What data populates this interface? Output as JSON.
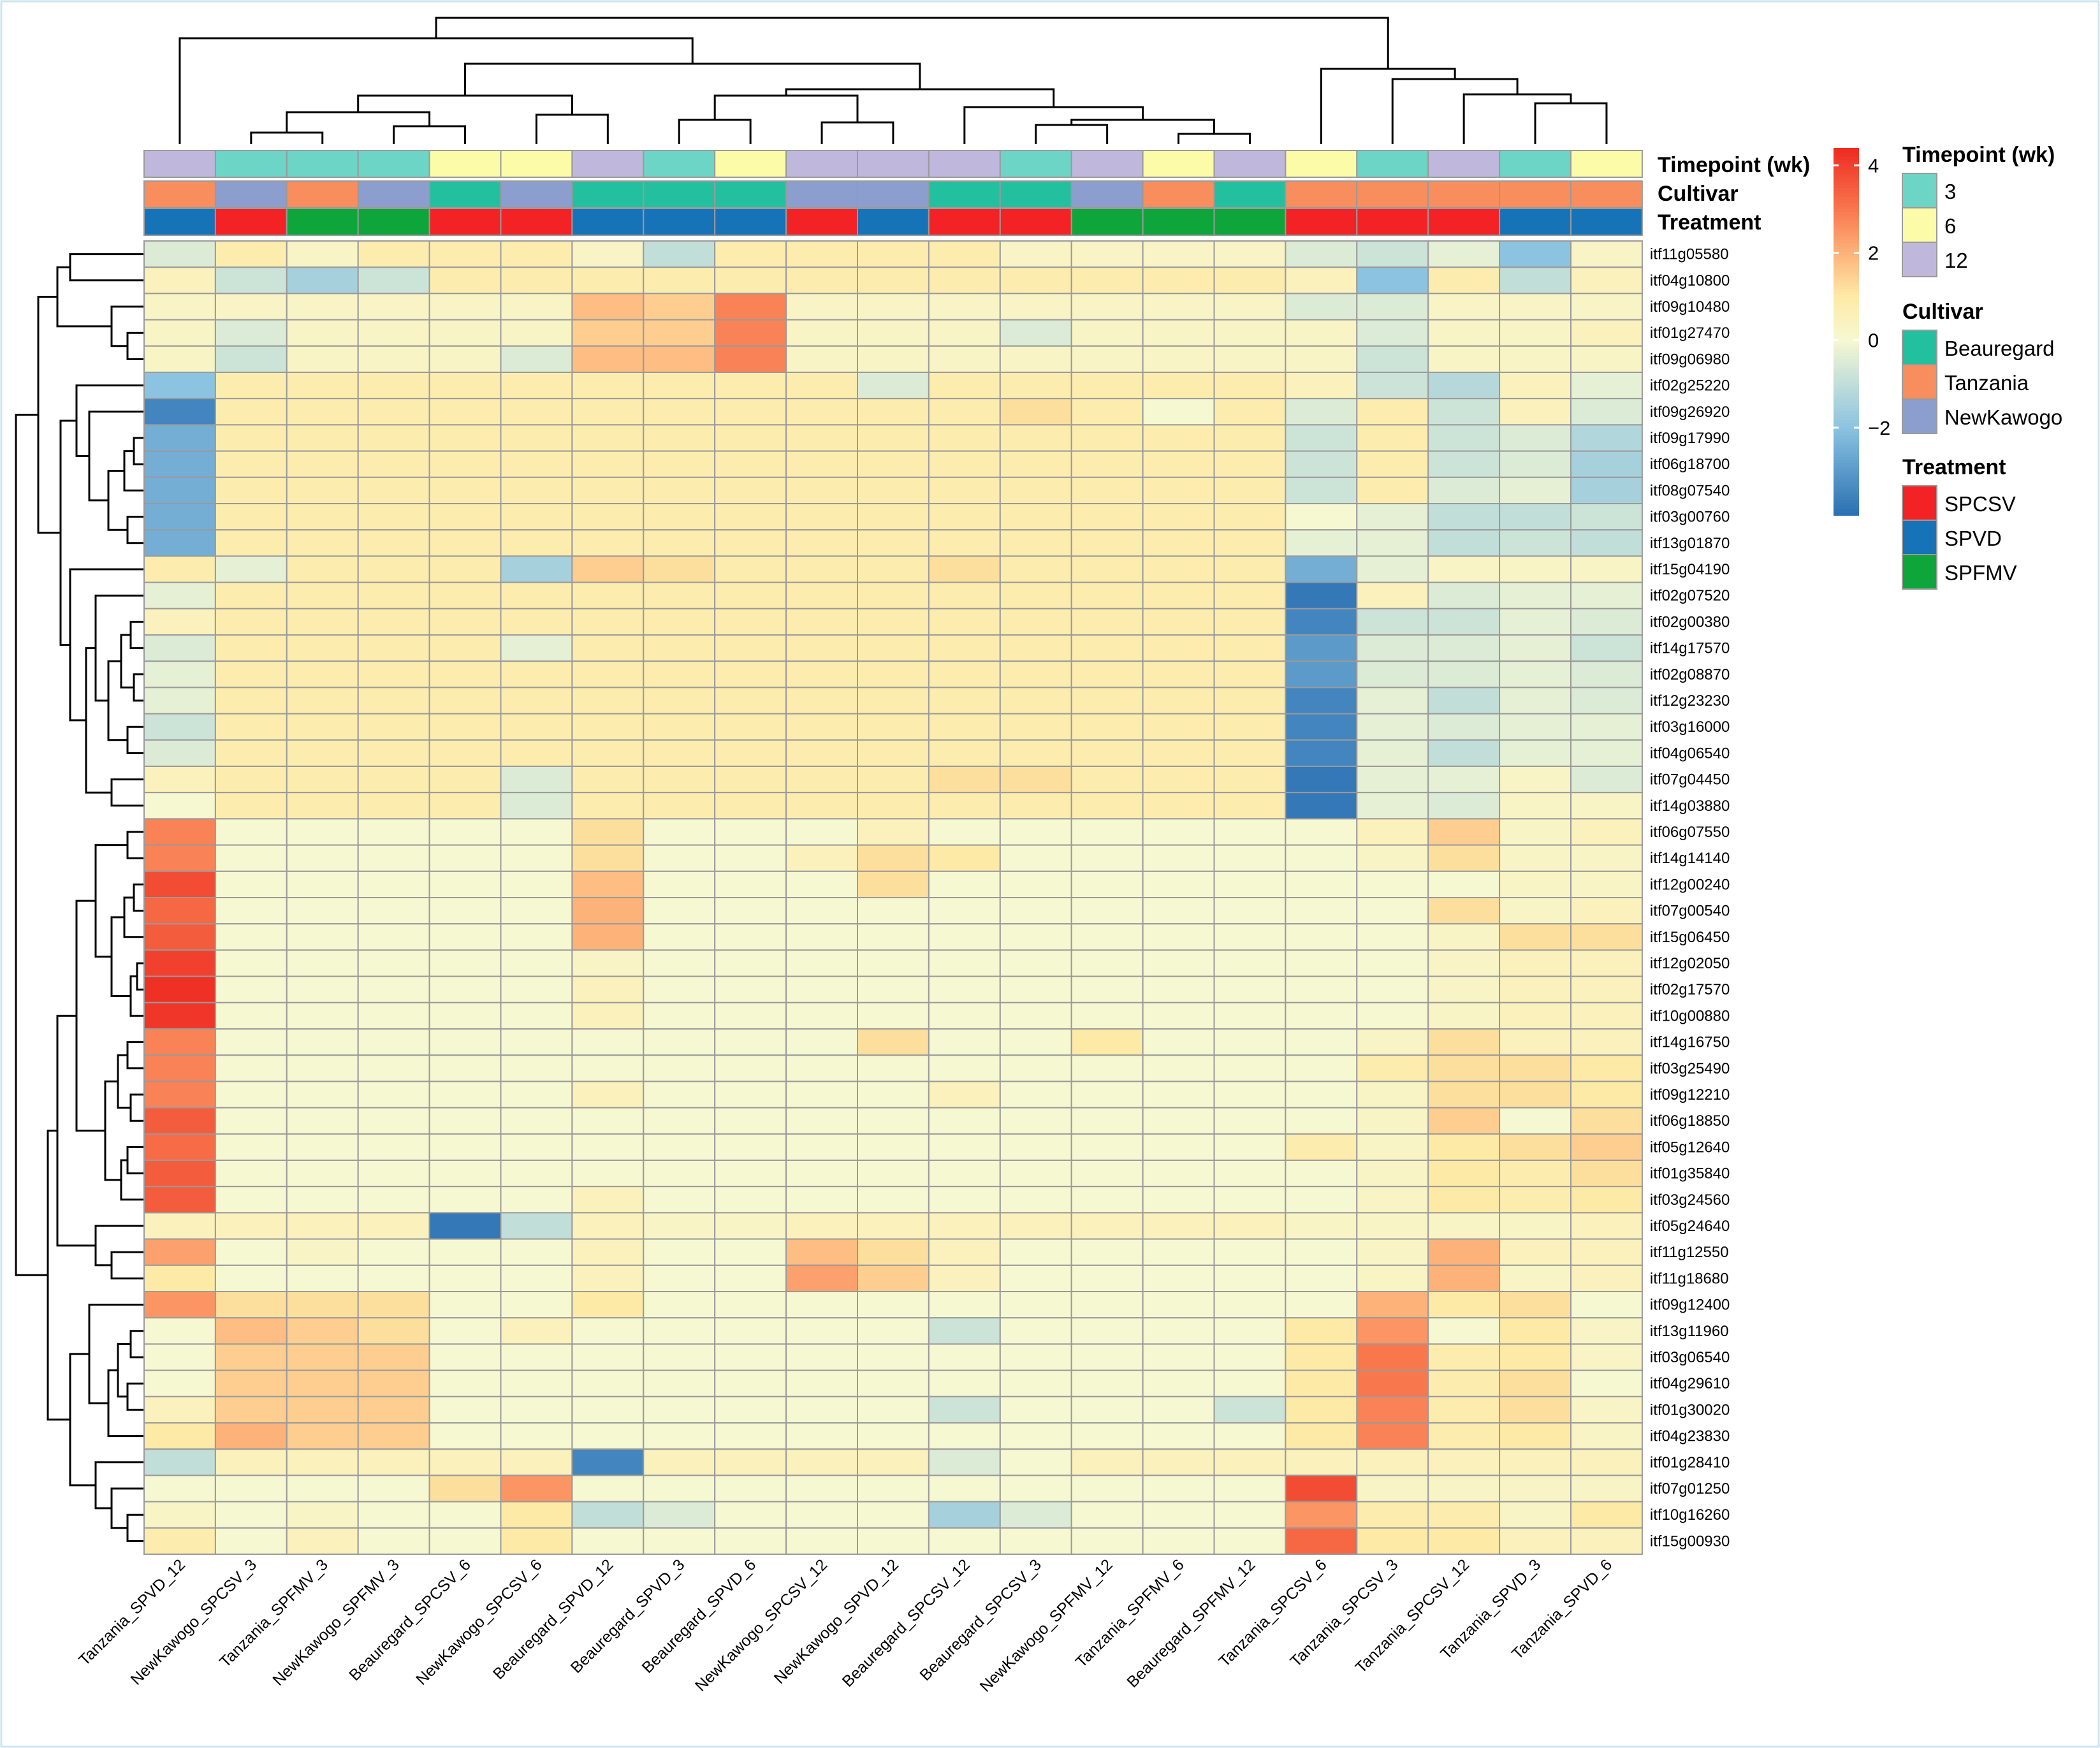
{
  "chart_data": {
    "type": "heatmap",
    "columns": [
      "Tanzania_SPVD_12",
      "NewKawogo_SPCSV_3",
      "Tanzania_SPFMV_3",
      "NewKawogo_SPFMV_3",
      "Beauregard_SPCSV_6",
      "NewKawogo_SPCSV_6",
      "Beauregard_SPVD_12",
      "Beauregard_SPVD_3",
      "Beauregard_SPVD_6",
      "NewKawogo_SPCSV_12",
      "NewKawogo_SPVD_12",
      "Beauregard_SPCSV_12",
      "Beauregard_SPCSV_3",
      "NewKawogo_SPFMV_12",
      "Tanzania_SPFMV_6",
      "Beauregard_SPFMV_12",
      "Tanzania_SPCSV_6",
      "Tanzania_SPCSV_3",
      "Tanzania_SPCSV_12",
      "Tanzania_SPVD_3",
      "Tanzania_SPVD_6"
    ],
    "rows": [
      "itf11g05580",
      "itf04g10800",
      "itf09g10480",
      "itf01g27470",
      "itf09g06980",
      "itf02g25220",
      "itf09g26920",
      "itf09g17990",
      "itf06g18700",
      "itf08g07540",
      "itf03g00760",
      "itf13g01870",
      "itf15g04190",
      "itf02g07520",
      "itf02g00380",
      "itf14g17570",
      "itf02g08870",
      "itf12g23230",
      "itf03g16000",
      "itf04g06540",
      "itf07g04450",
      "itf14g03880",
      "itf06g07550",
      "itf14g14140",
      "itf12g00240",
      "itf07g00540",
      "itf15g06450",
      "itf12g02050",
      "itf02g17570",
      "itf10g00880",
      "itf14g16750",
      "itf03g25490",
      "itf09g12210",
      "itf06g18850",
      "itf05g12640",
      "itf01g35840",
      "itf03g24560",
      "itf05g24640",
      "itf11g12550",
      "itf11g18680",
      "itf09g12400",
      "itf13g11960",
      "itf03g06540",
      "itf04g29610",
      "itf01g30020",
      "itf04g23830",
      "itf01g28410",
      "itf07g01250",
      "itf10g16260",
      "itf15g00930"
    ],
    "values": [
      [
        -0.5,
        0.8,
        0.3,
        0.8,
        0.8,
        0.8,
        0.3,
        -1,
        0.8,
        0.8,
        0.8,
        0.8,
        0.3,
        0.3,
        0.3,
        0.3,
        -0.5,
        -0.8,
        -0.3,
        -2,
        0.3
      ],
      [
        0.5,
        -0.8,
        -1.5,
        -0.8,
        0.8,
        0.8,
        0.8,
        0.8,
        0.8,
        0.8,
        0.8,
        0.8,
        0.8,
        0.8,
        0.8,
        0.8,
        0.5,
        -2,
        0.8,
        -1,
        0.5
      ],
      [
        0.3,
        0.3,
        0.3,
        0.3,
        0.3,
        0.3,
        1.8,
        1.5,
        2.8,
        0.3,
        0.3,
        0.3,
        0.3,
        0.3,
        0.3,
        0.3,
        -0.5,
        -0.5,
        0.3,
        0.3,
        0.3
      ],
      [
        0.3,
        -0.5,
        0.3,
        0.3,
        0.3,
        0.3,
        1.5,
        1.5,
        2.8,
        0.3,
        0.3,
        0.3,
        -0.5,
        0.3,
        0.3,
        0.3,
        0.3,
        -0.5,
        0.3,
        0.3,
        0.5
      ],
      [
        0.3,
        -0.8,
        0.3,
        0.3,
        0.3,
        -0.5,
        1.8,
        1.8,
        2.8,
        0.3,
        0.3,
        0.3,
        0.3,
        0.3,
        0.3,
        0.3,
        0.3,
        -0.8,
        0.3,
        0.3,
        0.3
      ],
      [
        -2,
        0.8,
        0.8,
        0.8,
        0.8,
        0.8,
        0.8,
        0.8,
        0.8,
        0.8,
        -0.5,
        0.8,
        0.8,
        0.8,
        0.8,
        0.8,
        0.5,
        -0.8,
        -1.2,
        0.5,
        -0.3
      ],
      [
        -3.5,
        0.8,
        0.8,
        0.8,
        0.8,
        0.8,
        0.8,
        0.8,
        0.8,
        0.8,
        0.8,
        0.8,
        1.2,
        0.8,
        0,
        0.8,
        -0.5,
        0.8,
        -0.8,
        0.5,
        -0.5
      ],
      [
        -2.5,
        0.8,
        0.8,
        0.8,
        0.8,
        0.8,
        0.8,
        0.8,
        0.8,
        0.8,
        0.8,
        0.8,
        0.8,
        0.8,
        0.8,
        0.8,
        -0.8,
        0.8,
        -0.8,
        -0.5,
        -1.3
      ],
      [
        -2.5,
        0.8,
        0.8,
        0.8,
        0.8,
        0.8,
        0.8,
        0.8,
        0.8,
        0.8,
        0.8,
        0.8,
        0.8,
        0.8,
        0.8,
        0.8,
        -0.8,
        0.8,
        -0.8,
        -0.5,
        -1.5
      ],
      [
        -2.5,
        0.8,
        0.8,
        0.8,
        0.8,
        0.8,
        0.8,
        0.8,
        0.8,
        0.8,
        0.8,
        0.8,
        0.8,
        0.8,
        0.8,
        0.8,
        -0.8,
        0.8,
        -0.5,
        -0.3,
        -1.5
      ],
      [
        -2.5,
        0.8,
        0.8,
        0.8,
        0.8,
        0.8,
        0.8,
        0.8,
        0.8,
        0.8,
        0.8,
        0.8,
        0.8,
        0.8,
        0.8,
        0.8,
        0,
        -0.3,
        -1,
        -1,
        -0.8
      ],
      [
        -2.5,
        0.8,
        0.8,
        0.8,
        0.8,
        0.8,
        0.8,
        0.8,
        0.8,
        0.8,
        0.8,
        0.8,
        0.8,
        0.8,
        0.8,
        0.8,
        -0.3,
        -0.3,
        -1,
        -0.8,
        -1
      ],
      [
        0.8,
        -0.3,
        0.8,
        0.8,
        0.8,
        -1.5,
        1.5,
        1.2,
        0.8,
        0.8,
        0.8,
        1.2,
        0.8,
        0.8,
        0.8,
        0.8,
        -2.5,
        -0.3,
        0.3,
        0.3,
        0.3
      ],
      [
        -0.3,
        0.8,
        0.8,
        0.8,
        0.8,
        0.8,
        0.8,
        0.8,
        0.8,
        0.8,
        0.8,
        0.8,
        0.8,
        0.8,
        0.8,
        0.8,
        -3.8,
        0.5,
        -0.5,
        -0.3,
        -0.3
      ],
      [
        0.5,
        0.8,
        0.8,
        0.8,
        0.8,
        0.8,
        0.8,
        0.8,
        0.8,
        0.8,
        0.8,
        0.8,
        0.8,
        0.8,
        0.8,
        0.8,
        -3.5,
        -0.8,
        -0.8,
        -0.3,
        -0.5
      ],
      [
        -0.5,
        0.8,
        0.8,
        0.8,
        0.8,
        -0.3,
        0.8,
        0.8,
        0.8,
        0.8,
        0.8,
        0.8,
        0.8,
        0.8,
        0.8,
        0.8,
        -3,
        -0.5,
        -0.5,
        -0.3,
        -0.8
      ],
      [
        -0.3,
        0.8,
        0.8,
        0.8,
        0.8,
        0.8,
        0.8,
        0.8,
        0.8,
        0.8,
        0.8,
        0.8,
        0.8,
        0.8,
        0.8,
        0.8,
        -3,
        -0.5,
        -0.5,
        -0.3,
        -0.5
      ],
      [
        -0.3,
        0.8,
        0.8,
        0.8,
        0.8,
        0.8,
        0.8,
        0.8,
        0.8,
        0.8,
        0.8,
        0.8,
        0.8,
        0.8,
        0.8,
        0.8,
        -3.5,
        -0.3,
        -1,
        -0.3,
        -0.5
      ],
      [
        -0.8,
        0.8,
        0.8,
        0.8,
        0.8,
        0.8,
        0.8,
        0.8,
        0.8,
        0.8,
        0.8,
        0.8,
        0.8,
        0.8,
        0.8,
        0.8,
        -3.5,
        -0.3,
        -0.5,
        -0.3,
        -0.3
      ],
      [
        -0.5,
        0.8,
        0.8,
        0.8,
        0.8,
        0.8,
        0.8,
        0.8,
        0.8,
        0.8,
        0.8,
        0.8,
        0.8,
        0.8,
        0.8,
        0.8,
        -3.5,
        -0.3,
        -1,
        -0.3,
        -0.3
      ],
      [
        0.5,
        0.8,
        0.8,
        0.8,
        0.8,
        -0.5,
        0.8,
        0.8,
        0.8,
        0.8,
        0.8,
        1.2,
        1.2,
        0.8,
        0.8,
        0.8,
        -3.8,
        -0.3,
        -0.3,
        0.3,
        -0.5
      ],
      [
        0,
        0.8,
        0.8,
        0.8,
        0.8,
        -0.5,
        0.8,
        0.8,
        0.8,
        0.8,
        0.8,
        0.8,
        0.8,
        0.8,
        0.8,
        0.8,
        -3.8,
        -0.3,
        -0.5,
        0.3,
        0.3
      ],
      [
        2.8,
        0,
        0,
        0,
        0,
        0,
        1.2,
        0,
        0,
        0,
        0.5,
        0,
        0,
        0,
        0,
        0,
        0,
        0.5,
        1.5,
        0.3,
        0.5
      ],
      [
        2.8,
        0,
        0,
        0,
        0,
        0,
        1.2,
        0,
        0,
        0.5,
        1.2,
        1,
        0,
        0,
        0,
        0,
        0,
        0.3,
        1.2,
        0.3,
        0.3
      ],
      [
        3.8,
        0,
        0,
        0,
        0,
        0,
        1.8,
        0,
        0,
        0,
        1.2,
        0,
        0,
        0,
        0,
        0,
        0,
        0,
        0,
        0.3,
        0.3
      ],
      [
        3.3,
        0,
        0,
        0,
        0,
        0,
        2,
        0,
        0,
        0,
        0,
        0,
        0,
        0,
        0,
        0,
        0,
        0,
        1.2,
        0.3,
        0.5
      ],
      [
        3.5,
        0,
        0,
        0,
        0,
        0,
        2,
        0,
        0,
        0,
        0,
        0,
        0,
        0,
        0,
        0,
        0,
        0,
        0.3,
        1.2,
        1.2
      ],
      [
        4,
        0,
        0,
        0,
        0,
        0,
        0.3,
        0,
        0,
        0,
        0,
        0,
        0,
        0,
        0,
        0,
        0,
        0,
        0.3,
        0.5,
        0.5
      ],
      [
        4.3,
        0,
        0,
        0,
        0,
        0,
        0.5,
        0,
        0,
        0,
        0,
        0,
        0,
        0,
        0,
        0,
        0,
        0,
        0.3,
        0.5,
        0.5
      ],
      [
        4.2,
        0,
        0,
        0,
        0,
        0,
        0.5,
        0,
        0,
        0,
        0,
        0,
        0,
        0,
        0,
        0,
        0,
        0,
        0.3,
        0.5,
        0.5
      ],
      [
        2.8,
        0,
        0,
        0,
        0,
        0,
        0,
        0,
        0,
        0,
        1.2,
        0,
        0,
        1,
        0,
        0,
        0,
        0.3,
        1.2,
        0.5,
        0.5
      ],
      [
        2.8,
        0,
        0,
        0,
        0,
        0,
        0,
        0,
        0,
        0,
        0,
        0,
        0,
        0,
        0,
        0,
        0,
        0.8,
        1.2,
        1.2,
        1
      ],
      [
        2.8,
        0,
        0,
        0,
        0,
        0,
        0.5,
        0,
        0,
        0,
        0,
        0.5,
        0,
        0,
        0,
        0,
        0,
        0.3,
        1.2,
        1.2,
        1
      ],
      [
        3.5,
        0,
        0,
        0,
        0,
        0,
        0,
        0,
        0,
        0,
        0,
        0,
        0,
        0,
        0,
        0,
        0,
        0.3,
        1.5,
        0,
        1.2
      ],
      [
        3.2,
        0,
        0,
        0,
        0,
        0,
        0,
        0,
        0,
        0,
        0,
        0,
        0,
        0,
        0,
        0,
        0.8,
        0.3,
        1,
        1.2,
        1.5
      ],
      [
        3.5,
        0,
        0,
        0,
        0,
        0,
        0,
        0,
        0,
        0,
        0,
        0,
        0,
        0,
        0,
        0,
        0,
        0.3,
        1,
        0.8,
        1.2
      ],
      [
        3.5,
        0,
        0,
        0,
        0,
        0,
        0.5,
        0,
        0,
        0,
        0,
        0,
        0,
        0,
        0,
        0,
        0,
        0.3,
        1,
        0.8,
        1
      ],
      [
        0.5,
        0.5,
        0.5,
        0.5,
        -3.8,
        -1,
        0.5,
        0.3,
        0.3,
        0.5,
        0.5,
        0.5,
        0.5,
        0.5,
        0.5,
        0.5,
        0.3,
        0.3,
        0.3,
        0.3,
        0.5
      ],
      [
        2.3,
        0,
        0.3,
        0,
        0,
        0,
        0.5,
        0,
        0,
        1.8,
        1.2,
        0.5,
        0,
        0,
        0,
        0,
        0,
        0.3,
        2,
        0.5,
        0.5
      ],
      [
        1,
        0,
        0,
        0,
        0,
        0,
        0.5,
        0,
        0,
        2.3,
        1.5,
        0.5,
        0,
        0,
        0,
        0,
        0,
        0.3,
        2,
        0.3,
        0.5
      ],
      [
        2.5,
        1.2,
        1.2,
        1.2,
        0,
        0,
        1,
        0,
        0,
        0,
        0,
        0,
        0,
        0,
        0,
        0,
        0,
        2,
        1,
        1.2,
        0
      ],
      [
        0,
        1.8,
        1.5,
        1.2,
        0,
        0.5,
        0,
        0,
        0,
        0,
        0,
        -0.8,
        0,
        0,
        0,
        0,
        1,
        2.5,
        0,
        1,
        0.3
      ],
      [
        0,
        1.5,
        1.5,
        1.5,
        0,
        0,
        0,
        0,
        0,
        0,
        0,
        0,
        0,
        0,
        0,
        0,
        1,
        3,
        0.8,
        1,
        0.3
      ],
      [
        0,
        1.5,
        1.5,
        1.5,
        0,
        0,
        0,
        0,
        0,
        0,
        0,
        0,
        0,
        0,
        0,
        0,
        1,
        3,
        0.8,
        1.2,
        0
      ],
      [
        0.5,
        1.5,
        1.5,
        1.5,
        0,
        0,
        0,
        0,
        0,
        0,
        0,
        -0.8,
        0,
        0,
        0,
        -0.8,
        1,
        2.8,
        0.8,
        1.2,
        0.3
      ],
      [
        1,
        2,
        1.5,
        1.5,
        0,
        0,
        0,
        0,
        0,
        0,
        0,
        0,
        0,
        0,
        0,
        0,
        1,
        2.8,
        0.8,
        1,
        0.3
      ],
      [
        -1,
        0.5,
        0.5,
        0.5,
        0.5,
        0.5,
        -3.5,
        0.5,
        0.5,
        0.5,
        0.5,
        -0.5,
        0,
        0.5,
        0.5,
        0.5,
        0.5,
        0.5,
        0.5,
        0.5,
        0.5
      ],
      [
        0,
        0,
        0,
        0,
        1.2,
        2.5,
        0,
        0,
        0,
        0,
        0,
        0,
        0,
        0,
        0,
        0,
        3.8,
        0.3,
        0.3,
        0.3,
        0.3
      ],
      [
        0.3,
        0,
        0.3,
        0,
        0,
        1,
        -1,
        -0.5,
        0,
        0,
        0,
        -1.5,
        -0.5,
        0,
        0,
        0,
        2.5,
        0.8,
        0.8,
        0.3,
        1
      ],
      [
        0.8,
        0,
        0.5,
        0,
        0,
        1,
        0,
        0,
        0,
        0,
        0,
        0,
        0,
        0,
        0,
        0,
        3.3,
        1,
        1,
        0.5,
        0.5
      ]
    ],
    "annotations": {
      "timepoint": [
        12,
        3,
        3,
        3,
        6,
        6,
        12,
        3,
        6,
        12,
        12,
        12,
        3,
        12,
        6,
        12,
        6,
        3,
        12,
        3,
        6
      ],
      "cultivar": [
        "Tanzania",
        "NewKawogo",
        "Tanzania",
        "NewKawogo",
        "Beauregard",
        "NewKawogo",
        "Beauregard",
        "Beauregard",
        "Beauregard",
        "NewKawogo",
        "NewKawogo",
        "Beauregard",
        "Beauregard",
        "NewKawogo",
        "Tanzania",
        "Beauregard",
        "Tanzania",
        "Tanzania",
        "Tanzania",
        "Tanzania",
        "Tanzania"
      ],
      "treatment": [
        "SPVD",
        "SPCSV",
        "SPFMV",
        "SPFMV",
        "SPCSV",
        "SPCSV",
        "SPVD",
        "SPVD",
        "SPVD",
        "SPCSV",
        "SPVD",
        "SPCSV",
        "SPCSV",
        "SPFMV",
        "SPFMV",
        "SPFMV",
        "SPCSV",
        "SPCSV",
        "SPCSV",
        "SPVD",
        "SPVD"
      ]
    },
    "annotation_labels": [
      "Timepoint (wk)",
      "Cultivar",
      "Treatment"
    ],
    "color_scale": {
      "range": [
        -4,
        4.4
      ],
      "ticks": [
        4,
        2,
        0,
        -2
      ],
      "tick_labels": [
        "4",
        "2",
        "0",
        "−2"
      ],
      "stops": [
        {
          "v": -4,
          "c": "#2a70b2"
        },
        {
          "v": -2,
          "c": "#8cc3e0"
        },
        {
          "v": 0,
          "c": "#f6f8d2"
        },
        {
          "v": 1,
          "c": "#fdeaa6"
        },
        {
          "v": 2,
          "c": "#fdb27a"
        },
        {
          "v": 3,
          "c": "#f8774d"
        },
        {
          "v": 4.4,
          "c": "#ee2b22"
        }
      ]
    },
    "legend": {
      "timepoint": {
        "title": "Timepoint (wk)",
        "items": [
          {
            "label": "3",
            "color": "#6dd5c5"
          },
          {
            "label": "6",
            "color": "#fcfba7"
          },
          {
            "label": "12",
            "color": "#bfb7dc"
          }
        ]
      },
      "cultivar": {
        "title": "Cultivar",
        "items": [
          {
            "label": "Beauregard",
            "color": "#23c0a0"
          },
          {
            "label": "Tanzania",
            "color": "#f88e5d"
          },
          {
            "label": "NewKawogo",
            "color": "#8c9ece"
          }
        ]
      },
      "treatment": {
        "title": "Treatment",
        "items": [
          {
            "label": "SPCSV",
            "color": "#f32225"
          },
          {
            "label": "SPVD",
            "color": "#1773b8"
          },
          {
            "label": "SPFMV",
            "color": "#0ea53a"
          }
        ]
      }
    },
    "col_dendrogram_order": [
      [
        19,
        20
      ],
      [
        18,
        "a"
      ],
      [
        17,
        "b"
      ],
      [
        16,
        "c"
      ],
      [
        1,
        2
      ],
      [
        4,
        3
      ],
      [
        "e",
        "d"
      ],
      [
        5,
        6
      ],
      [
        12,
        13
      ],
      [
        14,
        15
      ],
      [
        11,
        "h"
      ],
      [
        "i",
        "g"
      ],
      [
        0,
        "f"
      ],
      [
        9,
        10
      ],
      [
        7,
        8
      ],
      [
        "k",
        "l"
      ],
      [
        6,
        "m"
      ]
    ]
  }
}
